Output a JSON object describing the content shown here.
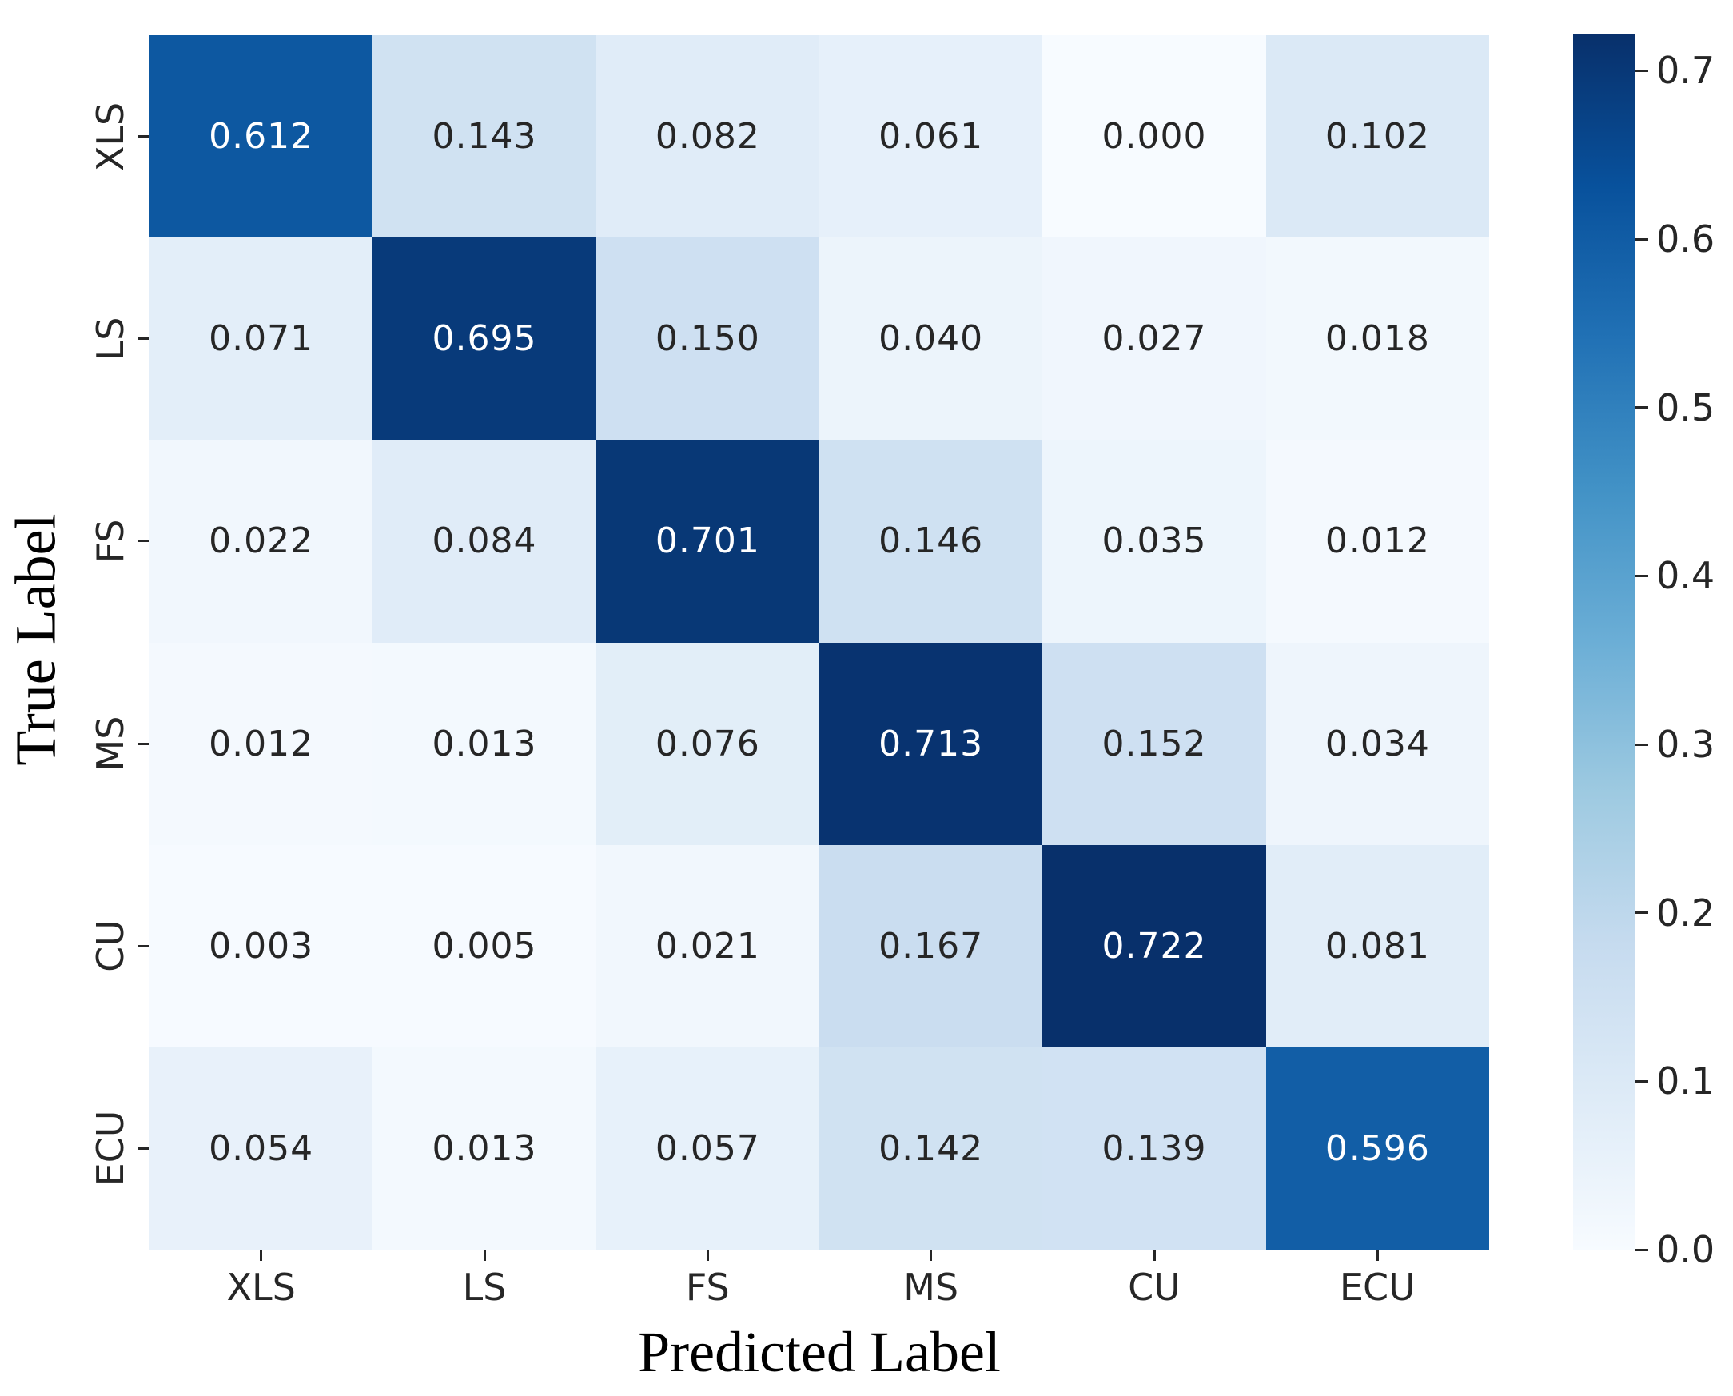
{
  "chart_data": {
    "type": "heatmap",
    "title": "",
    "xlabel": "Predicted Label",
    "ylabel": "True Label",
    "x_categories": [
      "XLS",
      "LS",
      "FS",
      "MS",
      "CU",
      "ECU"
    ],
    "y_categories": [
      "XLS",
      "LS",
      "FS",
      "MS",
      "CU",
      "ECU"
    ],
    "matrix": [
      [
        0.612,
        0.143,
        0.082,
        0.061,
        0.0,
        0.102
      ],
      [
        0.071,
        0.695,
        0.15,
        0.04,
        0.027,
        0.018
      ],
      [
        0.022,
        0.084,
        0.701,
        0.146,
        0.035,
        0.012
      ],
      [
        0.012,
        0.013,
        0.076,
        0.713,
        0.152,
        0.034
      ],
      [
        0.003,
        0.005,
        0.021,
        0.167,
        0.722,
        0.081
      ],
      [
        0.054,
        0.013,
        0.057,
        0.142,
        0.139,
        0.596
      ]
    ],
    "value_decimals": 3,
    "grid": false,
    "legend_position": "right-colorbar",
    "colorbar": {
      "vmin": 0.0,
      "vmax": 0.722,
      "tick_values": [
        0.7,
        0.6,
        0.5,
        0.4,
        0.3,
        0.2,
        0.1,
        0.0
      ],
      "tick_decimals": 1
    },
    "colormap": {
      "name": "Blues",
      "anchors": [
        "#f7fbff",
        "#deebf7",
        "#c6dbef",
        "#9ecae1",
        "#6baed6",
        "#4292c6",
        "#2171b5",
        "#08519c",
        "#08306b"
      ]
    },
    "colors": {
      "cell_text_light": "#ffffff",
      "cell_text_dark": "#262626",
      "tick_color": "#262626",
      "axis_title_color": "#000000",
      "background": "#ffffff"
    }
  }
}
